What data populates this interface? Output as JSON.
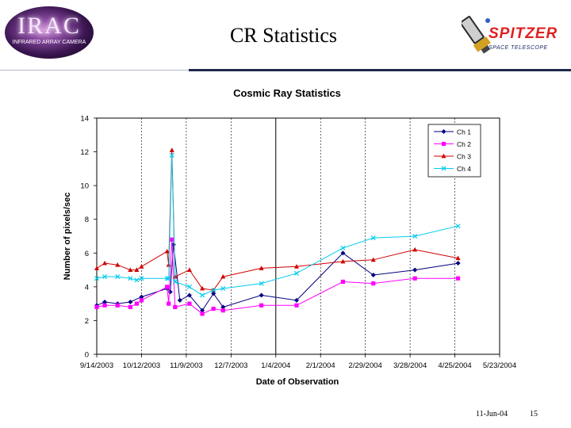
{
  "slide": {
    "title": "CR Statistics",
    "footer_date": "11-Jun-04",
    "page_number": "15"
  },
  "logos": {
    "irac_main": "IRAC",
    "irac_sub": "INFRARED ARRAY CAMERA",
    "spitzer_main": "SPITZER",
    "spitzer_sub": "SPACE TELESCOPE"
  },
  "colors": {
    "ch1": "#000080",
    "ch2": "#ff00ff",
    "ch3": "#d00000",
    "ch4": "#00ccee",
    "grid": "#000000",
    "divider": "#1e2a4a"
  },
  "chart_data": {
    "type": "line",
    "title": "Cosmic Ray Statistics",
    "xlabel": "Date of Observation",
    "ylabel": "Number of pixels/sec",
    "xlim": [
      0,
      252
    ],
    "ylim": [
      0,
      14
    ],
    "y_ticks": [
      0,
      2,
      4,
      6,
      8,
      10,
      12,
      14
    ],
    "x_ticks": [
      {
        "v": 0,
        "label": "9/14/2003"
      },
      {
        "v": 28,
        "label": "10/12/2003"
      },
      {
        "v": 56,
        "label": "11/9/2003"
      },
      {
        "v": 84,
        "label": "12/7/2003"
      },
      {
        "v": 112,
        "label": "1/4/2004"
      },
      {
        "v": 140,
        "label": "2/1/2004"
      },
      {
        "v": 168,
        "label": "2/29/2004"
      },
      {
        "v": 196,
        "label": "3/28/2004"
      },
      {
        "v": 224,
        "label": "4/25/2004"
      },
      {
        "v": 252,
        "label": "5/23/2004"
      }
    ],
    "major_gridlines_x": [
      112
    ],
    "legend_position": "top-right",
    "series": [
      {
        "name": "Ch 1",
        "marker": "diamond",
        "x": [
          0,
          5,
          13,
          21,
          28,
          44,
          46,
          48,
          52,
          58,
          66,
          73,
          79,
          103,
          125,
          154,
          173,
          199,
          226
        ],
        "y": [
          2.9,
          3.1,
          3.0,
          3.1,
          3.4,
          3.9,
          3.7,
          6.5,
          3.2,
          3.5,
          2.6,
          3.6,
          2.8,
          3.5,
          3.2,
          6.0,
          4.7,
          5.0,
          5.4
        ]
      },
      {
        "name": "Ch 2",
        "marker": "square",
        "x": [
          0,
          5,
          13,
          21,
          25,
          28,
          44,
          45,
          47,
          49,
          58,
          66,
          73,
          79,
          103,
          125,
          154,
          173,
          199,
          226
        ],
        "y": [
          2.8,
          2.9,
          2.9,
          2.8,
          3.0,
          3.2,
          4.0,
          3.0,
          6.8,
          2.8,
          3.0,
          2.4,
          2.7,
          2.6,
          2.9,
          2.9,
          4.3,
          4.2,
          4.5,
          4.5
        ]
      },
      {
        "name": "Ch 3",
        "marker": "triangle",
        "x": [
          0,
          5,
          13,
          21,
          25,
          28,
          44,
          45,
          47,
          49,
          58,
          66,
          73,
          79,
          103,
          125,
          154,
          173,
          199,
          226
        ],
        "y": [
          5.1,
          5.4,
          5.3,
          5.0,
          5.0,
          5.2,
          6.1,
          5.3,
          12.1,
          4.6,
          5.0,
          3.9,
          3.8,
          4.6,
          5.1,
          5.2,
          5.5,
          5.6,
          6.2,
          5.7
        ]
      },
      {
        "name": "Ch 4",
        "marker": "x",
        "x": [
          0,
          5,
          13,
          21,
          25,
          28,
          44,
          45,
          47,
          49,
          58,
          66,
          73,
          79,
          103,
          125,
          154,
          173,
          199,
          226
        ],
        "y": [
          4.5,
          4.6,
          4.6,
          4.5,
          4.4,
          4.5,
          4.5,
          4.5,
          11.8,
          4.3,
          4.0,
          3.5,
          3.8,
          3.9,
          4.2,
          4.8,
          6.3,
          6.9,
          7.0,
          7.6
        ]
      }
    ]
  }
}
